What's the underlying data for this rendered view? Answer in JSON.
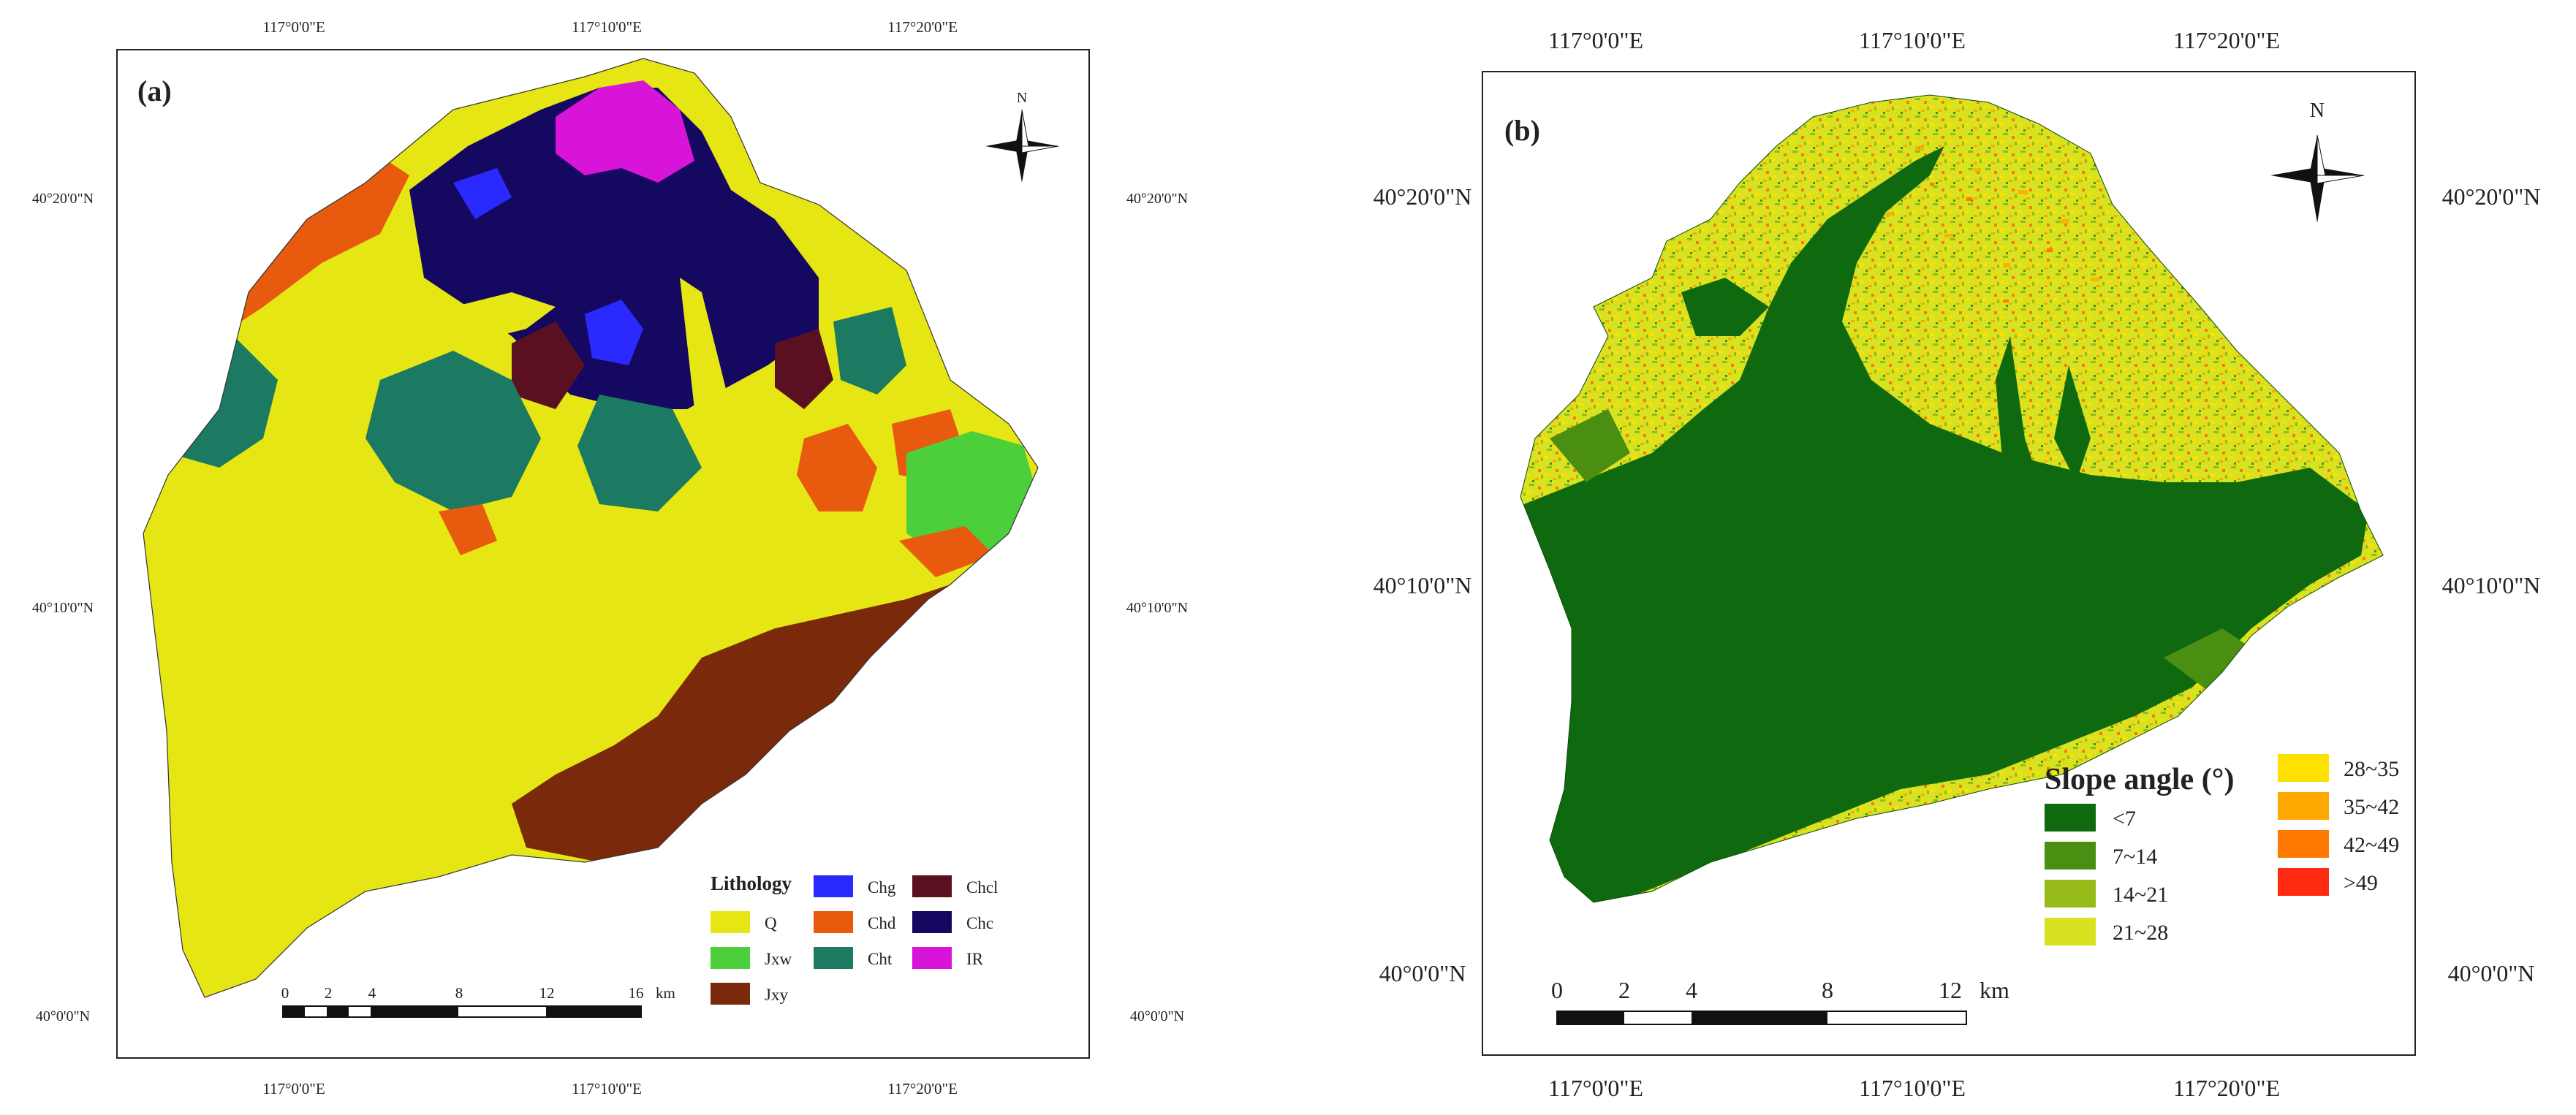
{
  "panel_a": {
    "label": "(a)",
    "top_ticks": [
      "117°0'0\"E",
      "117°10'0\"E",
      "117°20'0\"E"
    ],
    "bottom_ticks": [
      "117°0'0\"E",
      "117°10'0\"E",
      "117°20'0\"E"
    ],
    "left_ticks": [
      "40°20'0\"N",
      "40°10'0\"N",
      "40°0'0\"N"
    ],
    "right_ticks": [
      "40°20'0\"N",
      "40°10'0\"N",
      "40°0'0\"N"
    ],
    "north": "N",
    "legend": {
      "title": "Lithology",
      "items": [
        {
          "code": "Q",
          "color": "#e6e614"
        },
        {
          "code": "Jxw",
          "color": "#4ccf3a"
        },
        {
          "code": "Jxy",
          "color": "#7a2a0a"
        },
        {
          "code": "Chg",
          "color": "#2a2aff"
        },
        {
          "code": "Chd",
          "color": "#e85a0e"
        },
        {
          "code": "Cht",
          "color": "#1c7a62"
        },
        {
          "code": "Chcl",
          "color": "#5a1020"
        },
        {
          "code": "Chc",
          "color": "#150860"
        },
        {
          "code": "IR",
          "color": "#d814d8"
        }
      ]
    },
    "scale": {
      "ticks": [
        "0",
        "2",
        "4",
        "8",
        "12",
        "16"
      ],
      "unit": "km"
    }
  },
  "panel_b": {
    "label": "(b)",
    "top_ticks": [
      "117°0'0\"E",
      "117°10'0\"E",
      "117°20'0\"E"
    ],
    "bottom_ticks": [
      "117°0'0\"E",
      "117°10'0\"E",
      "117°20'0\"E"
    ],
    "left_ticks": [
      "40°20'0\"N",
      "40°10'0\"N",
      "40°0'0\"N"
    ],
    "right_ticks": [
      "40°20'0\"N",
      "40°10'0\"N",
      "40°0'0\"N"
    ],
    "north": "N",
    "legend": {
      "title": "Slope angle (°)",
      "items": [
        {
          "range": "<7",
          "color": "#0f6a0f"
        },
        {
          "range": "7~14",
          "color": "#4a8f12"
        },
        {
          "range": "14~21",
          "color": "#96ba18"
        },
        {
          "range": "21~28",
          "color": "#d8e220"
        },
        {
          "range": "28~35",
          "color": "#ffe000"
        },
        {
          "range": "35~42",
          "color": "#ffa800"
        },
        {
          "range": "42~49",
          "color": "#ff7800"
        },
        {
          "range": ">49",
          "color": "#ff2a10"
        }
      ]
    },
    "scale": {
      "ticks": [
        "0",
        "2",
        "4",
        "8",
        "12"
      ],
      "unit": "km"
    }
  }
}
